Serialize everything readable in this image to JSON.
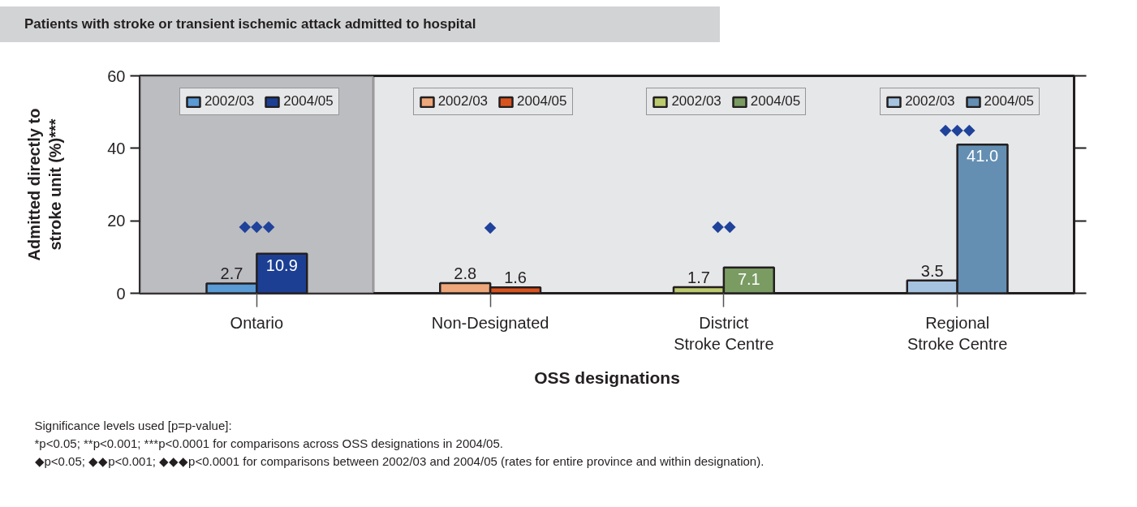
{
  "chart_data": {
    "type": "bar",
    "title": "Patients with stroke or transient ischemic attack admitted to hospital",
    "xlabel": "OSS designations",
    "ylabel": "Admitted directly to\nstroke unit (%)***",
    "categories": [
      "Ontario",
      "Non-Designated",
      "District\nStroke Centre",
      "Regional\nStroke Centre"
    ],
    "series": [
      {
        "name": "2002/03",
        "color": "#5a9ad5",
        "values": [
          2.7,
          null,
          null,
          null
        ],
        "value_labels": [
          "2.7",
          null,
          null,
          null
        ]
      },
      {
        "name": "2004/05",
        "color": "#1c3f94",
        "values": [
          10.9,
          null,
          null,
          null
        ],
        "value_labels": [
          "10.9",
          null,
          null,
          null
        ]
      },
      {
        "name": "2002/03",
        "color": "#eda77a",
        "values": [
          null,
          2.8,
          null,
          null
        ],
        "value_labels": [
          null,
          "2.8",
          null,
          null
        ]
      },
      {
        "name": "2004/05",
        "color": "#d9531e",
        "values": [
          null,
          1.6,
          null,
          null
        ],
        "value_labels": [
          null,
          "1.6",
          null,
          null
        ]
      },
      {
        "name": "2002/03",
        "color": "#bccb6e",
        "values": [
          null,
          null,
          1.7,
          null
        ],
        "value_labels": [
          null,
          null,
          "1.7",
          null
        ]
      },
      {
        "name": "2004/05",
        "color": "#7a9b62",
        "values": [
          null,
          null,
          7.1,
          null
        ],
        "value_labels": [
          null,
          null,
          "7.1",
          null
        ]
      },
      {
        "name": "2002/03",
        "color": "#a5c3de",
        "values": [
          null,
          null,
          null,
          3.5
        ],
        "value_labels": [
          null,
          null,
          null,
          "3.5"
        ]
      },
      {
        "name": "2004/05",
        "color": "#648fb3",
        "values": [
          null,
          null,
          null,
          41.0
        ],
        "value_labels": [
          null,
          null,
          null,
          "41.0"
        ]
      }
    ],
    "ylim": [
      0,
      60
    ],
    "yticks": [
      0,
      20,
      40,
      60
    ],
    "legend": "top",
    "bands": [
      {
        "axis": "x",
        "from": "Ontario",
        "to": "Ontario",
        "color": "#bcbdc1"
      }
    ],
    "annotations": [
      "◆◆◆",
      "◆",
      "◆◆",
      "◆◆◆",
      "Significance levels used [p=p-value]:",
      "*p<0.05; **p<0.001; ***p<0.0001 for comparisons across OSS designations in 2004/05.",
      "◆p<0.05; ◆◆p<0.001; ◆◆◆p<0.0001 for comparisons between 2002/03 and 2004/05 (rates for entire province and within designation)."
    ]
  }
}
